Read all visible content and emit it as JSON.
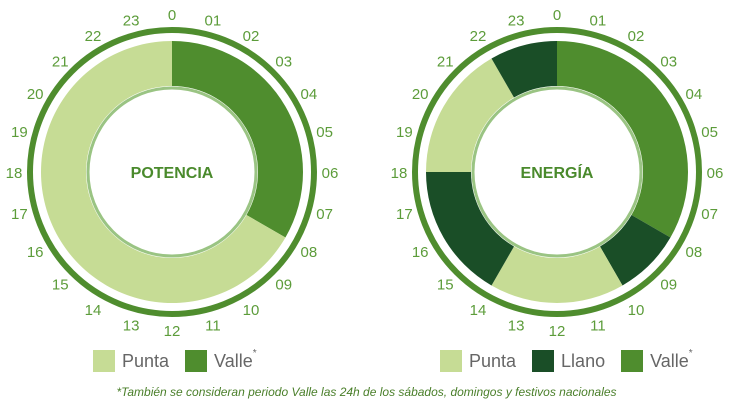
{
  "colors": {
    "punta": "#c6dc95",
    "llano": "#1a4e27",
    "valle": "#4f8d2e",
    "outer_ring": "#4f8d2e",
    "inner_ring": "#9ac483",
    "hour_label": "#5c9c3a",
    "center_title": "#4a8a2c",
    "footnote": "#4a7f2a"
  },
  "chart_data": [
    {
      "type": "pie",
      "variant": "donut-24h-clock",
      "title": "POTENCIA",
      "hour_labels": [
        "0",
        "01",
        "02",
        "03",
        "04",
        "05",
        "06",
        "07",
        "08",
        "09",
        "10",
        "11",
        "12",
        "13",
        "14",
        "15",
        "16",
        "17",
        "18",
        "19",
        "20",
        "21",
        "22",
        "23"
      ],
      "segments": [
        {
          "period": "Valle",
          "start_hour": 0,
          "end_hour": 8
        },
        {
          "period": "Punta",
          "start_hour": 8,
          "end_hour": 24
        }
      ],
      "legend": [
        {
          "key": "punta",
          "label": "Punta",
          "asterisk": ""
        },
        {
          "key": "valle",
          "label": "Valle",
          "asterisk": "*"
        }
      ]
    },
    {
      "type": "pie",
      "variant": "donut-24h-clock",
      "title": "ENERGÍA",
      "hour_labels": [
        "0",
        "01",
        "02",
        "03",
        "04",
        "05",
        "06",
        "07",
        "08",
        "09",
        "10",
        "11",
        "12",
        "13",
        "14",
        "15",
        "16",
        "17",
        "18",
        "19",
        "20",
        "21",
        "22",
        "23"
      ],
      "segments": [
        {
          "period": "Valle",
          "start_hour": 0,
          "end_hour": 8
        },
        {
          "period": "Llano",
          "start_hour": 8,
          "end_hour": 10
        },
        {
          "period": "Punta",
          "start_hour": 10,
          "end_hour": 14
        },
        {
          "period": "Llano",
          "start_hour": 14,
          "end_hour": 18
        },
        {
          "period": "Punta",
          "start_hour": 18,
          "end_hour": 22
        },
        {
          "period": "Llano",
          "start_hour": 22,
          "end_hour": 24
        }
      ],
      "legend": [
        {
          "key": "punta",
          "label": "Punta",
          "asterisk": ""
        },
        {
          "key": "llano",
          "label": "Llano",
          "asterisk": ""
        },
        {
          "key": "valle",
          "label": "Valle",
          "asterisk": "*"
        }
      ]
    }
  ],
  "footnote": "*También se consideran periodo Valle las 24h de los sábados, domingos y festivos nacionales"
}
